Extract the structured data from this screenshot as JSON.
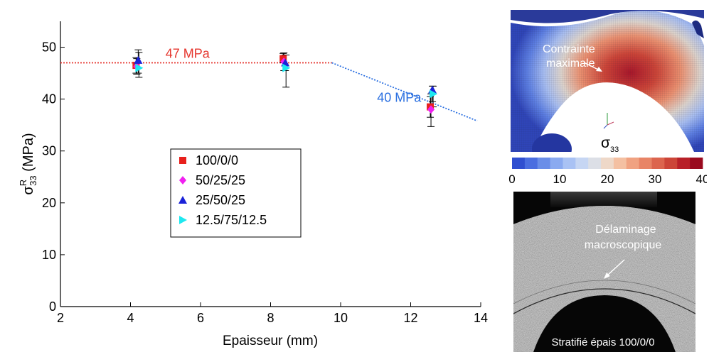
{
  "chart_data": {
    "type": "scatter",
    "xlabel": "Epaisseur (mm)",
    "ylabel": {
      "main": "σ",
      "sup": "R",
      "sub": "33",
      "unit": " (MPa)"
    },
    "xlim": [
      2,
      14
    ],
    "ylim": [
      0,
      55
    ],
    "xticks": [
      "2",
      "4",
      "6",
      "8",
      "10",
      "12",
      "14"
    ],
    "yticks": [
      "0",
      "10",
      "20",
      "30",
      "40",
      "50"
    ],
    "grid": false,
    "legend_position": "center",
    "series": [
      {
        "name": "100/0/0",
        "marker": "square",
        "color": "#e8201c",
        "points": [
          {
            "x": 4.2,
            "y": 46.5,
            "lo": 45.0,
            "hi": 48.0
          },
          {
            "x": 8.4,
            "y": 47.8,
            "lo": 47.0,
            "hi": 48.8
          },
          {
            "x": 12.6,
            "y": 38.5,
            "lo": 36.5,
            "hi": 40.5
          }
        ]
      },
      {
        "name": "50/25/25",
        "marker": "diamond",
        "color": "#f020f0",
        "points": [
          {
            "x": 4.2,
            "y": 46.3,
            "lo": 44.8,
            "hi": 47.8
          },
          {
            "x": 8.4,
            "y": 47.2,
            "lo": 45.5,
            "hi": 48.9
          },
          {
            "x": 12.6,
            "y": 38.0,
            "lo": 34.7,
            "hi": 41.0
          }
        ]
      },
      {
        "name": "25/50/25",
        "marker": "triangle-up",
        "color": "#1a22d8",
        "points": [
          {
            "x": 4.2,
            "y": 47.5,
            "lo": 45.0,
            "hi": 49.5
          },
          {
            "x": 8.4,
            "y": 47.0,
            "lo": 45.5,
            "hi": 48.5
          },
          {
            "x": 12.6,
            "y": 41.8,
            "lo": 39.5,
            "hi": 42.5
          }
        ]
      },
      {
        "name": "12.5/75/12.5",
        "marker": "triangle-right",
        "color": "#1ee8f0",
        "points": [
          {
            "x": 4.2,
            "y": 46.0,
            "lo": 44.2,
            "hi": 49.0
          },
          {
            "x": 8.4,
            "y": 46.0,
            "lo": 42.3,
            "hi": 48.5
          },
          {
            "x": 12.6,
            "y": 41.0,
            "lo": 38.5,
            "hi": 42.5
          }
        ]
      }
    ],
    "trend_lines": [
      {
        "label": "47 MPa",
        "color": "#e5352d",
        "x": [
          2,
          9.75
        ],
        "y": [
          47,
          47
        ]
      },
      {
        "label": "40 MPa",
        "color": "#2a6fe0",
        "x": [
          9.75,
          13.9
        ],
        "y": [
          47,
          35.8
        ]
      }
    ]
  },
  "fe_panel": {
    "annotation_line1": "Contrainte",
    "annotation_line2": "maximale",
    "sigma_main": "σ",
    "sigma_sub": "33"
  },
  "colorbar": {
    "ticks": [
      "0",
      "10",
      "20",
      "30",
      "40"
    ],
    "colors": [
      "#2f4fd0",
      "#4a6ee0",
      "#6a8ee8",
      "#8aaaf0",
      "#a9c2f4",
      "#c6d6f3",
      "#dcdfe6",
      "#eed8c8",
      "#f4c0a2",
      "#f0a281",
      "#e88466",
      "#dc654e",
      "#cc4538",
      "#b82028",
      "#9a0a1e"
    ]
  },
  "micro_panel": {
    "annotation_line1": "Délaminage",
    "annotation_line2": "macroscopique",
    "caption": "Stratifié épais 100/0/0"
  }
}
